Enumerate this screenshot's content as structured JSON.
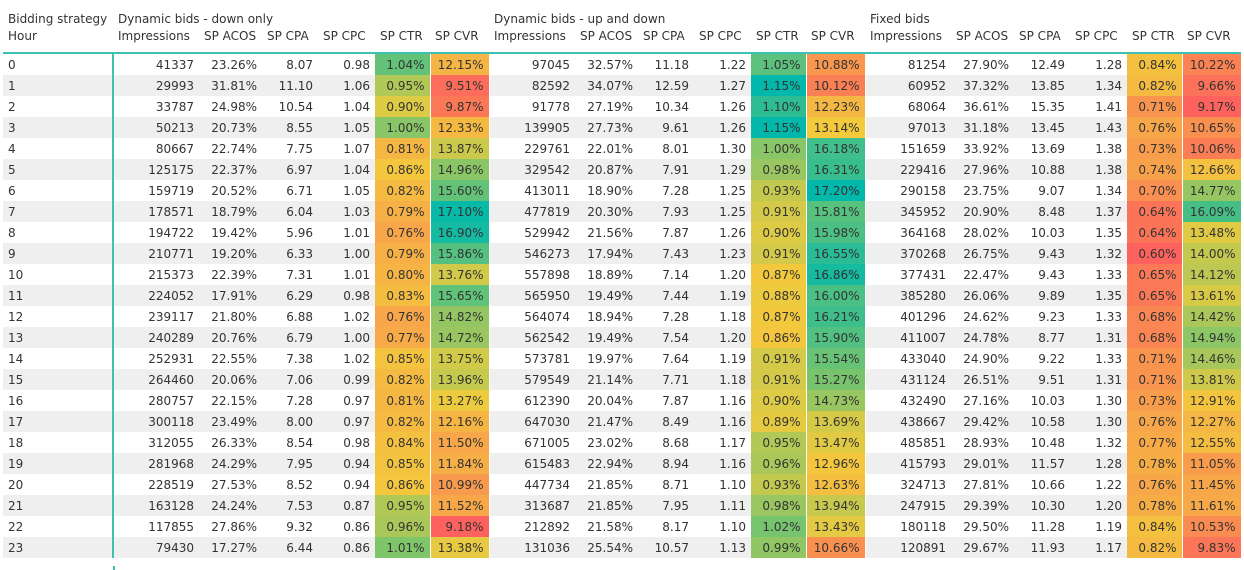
{
  "header": {
    "strategy_label": "Bidding strategy",
    "hour_label": "Hour",
    "groups": [
      "Dynamic bids - down only",
      "Dynamic bids - up and down",
      "Fixed bids"
    ],
    "columns": [
      "Impressions",
      "SP ACOS",
      "SP CPA",
      "SP CPC",
      "SP CTR",
      "SP CVR"
    ]
  },
  "colors": {
    "teal_accent": "#3cc1b3",
    "scale_low": "#fd625e",
    "scale_mid_low": "#f8a04b",
    "scale_mid": "#f2cb3c",
    "scale_mid_high": "#7dc56b",
    "scale_high": "#01b8aa"
  },
  "rows": [
    {
      "hour": "0",
      "g": [
        [
          "41337",
          "23.26%",
          "8.07",
          "0.98",
          "1.04%",
          "12.15%"
        ],
        [
          "97045",
          "32.57%",
          "11.18",
          "1.22",
          "1.05%",
          "10.88%"
        ],
        [
          "81254",
          "27.90%",
          "12.49",
          "1.28",
          "0.84%",
          "10.22%"
        ]
      ]
    },
    {
      "hour": "1",
      "g": [
        [
          "29993",
          "31.81%",
          "11.10",
          "1.06",
          "0.95%",
          "9.51%"
        ],
        [
          "82592",
          "34.07%",
          "12.59",
          "1.27",
          "1.15%",
          "10.12%"
        ],
        [
          "60952",
          "37.32%",
          "13.85",
          "1.34",
          "0.82%",
          "9.66%"
        ]
      ]
    },
    {
      "hour": "2",
      "g": [
        [
          "33787",
          "24.98%",
          "10.54",
          "1.04",
          "0.90%",
          "9.87%"
        ],
        [
          "91778",
          "27.19%",
          "10.34",
          "1.26",
          "1.10%",
          "12.23%"
        ],
        [
          "68064",
          "36.61%",
          "15.35",
          "1.41",
          "0.71%",
          "9.17%"
        ]
      ]
    },
    {
      "hour": "3",
      "g": [
        [
          "50213",
          "20.73%",
          "8.55",
          "1.05",
          "1.00%",
          "12.33%"
        ],
        [
          "139905",
          "27.73%",
          "9.61",
          "1.26",
          "1.15%",
          "13.14%"
        ],
        [
          "97013",
          "31.18%",
          "13.45",
          "1.43",
          "0.76%",
          "10.65%"
        ]
      ]
    },
    {
      "hour": "4",
      "g": [
        [
          "80667",
          "22.74%",
          "7.75",
          "1.07",
          "0.81%",
          "13.87%"
        ],
        [
          "229761",
          "22.01%",
          "8.01",
          "1.30",
          "1.00%",
          "16.18%"
        ],
        [
          "151659",
          "33.92%",
          "13.69",
          "1.38",
          "0.73%",
          "10.06%"
        ]
      ]
    },
    {
      "hour": "5",
      "g": [
        [
          "125175",
          "22.37%",
          "6.97",
          "1.04",
          "0.86%",
          "14.96%"
        ],
        [
          "329542",
          "20.87%",
          "7.91",
          "1.29",
          "0.98%",
          "16.31%"
        ],
        [
          "229416",
          "27.96%",
          "10.88",
          "1.38",
          "0.74%",
          "12.66%"
        ]
      ]
    },
    {
      "hour": "6",
      "g": [
        [
          "159719",
          "20.52%",
          "6.71",
          "1.05",
          "0.82%",
          "15.60%"
        ],
        [
          "413011",
          "18.90%",
          "7.28",
          "1.25",
          "0.93%",
          "17.20%"
        ],
        [
          "290158",
          "23.75%",
          "9.07",
          "1.34",
          "0.70%",
          "14.77%"
        ]
      ]
    },
    {
      "hour": "7",
      "g": [
        [
          "178571",
          "18.79%",
          "6.04",
          "1.03",
          "0.79%",
          "17.10%"
        ],
        [
          "477819",
          "20.30%",
          "7.93",
          "1.25",
          "0.91%",
          "15.81%"
        ],
        [
          "345952",
          "20.90%",
          "8.48",
          "1.37",
          "0.64%",
          "16.09%"
        ]
      ]
    },
    {
      "hour": "8",
      "g": [
        [
          "194722",
          "19.42%",
          "5.96",
          "1.01",
          "0.76%",
          "16.90%"
        ],
        [
          "529942",
          "21.56%",
          "7.87",
          "1.26",
          "0.90%",
          "15.98%"
        ],
        [
          "364168",
          "28.02%",
          "10.03",
          "1.35",
          "0.64%",
          "13.48%"
        ]
      ]
    },
    {
      "hour": "9",
      "g": [
        [
          "210771",
          "19.20%",
          "6.33",
          "1.00",
          "0.79%",
          "15.86%"
        ],
        [
          "546273",
          "17.94%",
          "7.43",
          "1.23",
          "0.91%",
          "16.55%"
        ],
        [
          "370268",
          "26.75%",
          "9.43",
          "1.32",
          "0.60%",
          "14.00%"
        ]
      ]
    },
    {
      "hour": "10",
      "g": [
        [
          "215373",
          "22.39%",
          "7.31",
          "1.01",
          "0.80%",
          "13.76%"
        ],
        [
          "557898",
          "18.89%",
          "7.14",
          "1.20",
          "0.87%",
          "16.86%"
        ],
        [
          "377431",
          "22.47%",
          "9.43",
          "1.33",
          "0.65%",
          "14.12%"
        ]
      ]
    },
    {
      "hour": "11",
      "g": [
        [
          "224052",
          "17.91%",
          "6.29",
          "0.98",
          "0.83%",
          "15.65%"
        ],
        [
          "565950",
          "19.49%",
          "7.44",
          "1.19",
          "0.88%",
          "16.00%"
        ],
        [
          "385280",
          "26.06%",
          "9.89",
          "1.35",
          "0.65%",
          "13.61%"
        ]
      ]
    },
    {
      "hour": "12",
      "g": [
        [
          "239117",
          "21.80%",
          "6.88",
          "1.02",
          "0.76%",
          "14.82%"
        ],
        [
          "564074",
          "18.94%",
          "7.28",
          "1.18",
          "0.87%",
          "16.21%"
        ],
        [
          "401296",
          "24.62%",
          "9.23",
          "1.33",
          "0.68%",
          "14.42%"
        ]
      ]
    },
    {
      "hour": "13",
      "g": [
        [
          "240289",
          "20.76%",
          "6.79",
          "1.00",
          "0.77%",
          "14.72%"
        ],
        [
          "562542",
          "19.49%",
          "7.54",
          "1.20",
          "0.86%",
          "15.90%"
        ],
        [
          "411007",
          "24.78%",
          "8.77",
          "1.31",
          "0.68%",
          "14.94%"
        ]
      ]
    },
    {
      "hour": "14",
      "g": [
        [
          "252931",
          "22.55%",
          "7.38",
          "1.02",
          "0.85%",
          "13.75%"
        ],
        [
          "573781",
          "19.97%",
          "7.64",
          "1.19",
          "0.91%",
          "15.54%"
        ],
        [
          "433040",
          "24.90%",
          "9.22",
          "1.33",
          "0.71%",
          "14.46%"
        ]
      ]
    },
    {
      "hour": "15",
      "g": [
        [
          "264460",
          "20.06%",
          "7.06",
          "0.99",
          "0.82%",
          "13.96%"
        ],
        [
          "579549",
          "21.14%",
          "7.71",
          "1.18",
          "0.91%",
          "15.27%"
        ],
        [
          "431124",
          "26.51%",
          "9.51",
          "1.31",
          "0.71%",
          "13.81%"
        ]
      ]
    },
    {
      "hour": "16",
      "g": [
        [
          "280757",
          "22.15%",
          "7.28",
          "0.97",
          "0.81%",
          "13.27%"
        ],
        [
          "612390",
          "20.04%",
          "7.87",
          "1.16",
          "0.90%",
          "14.73%"
        ],
        [
          "432490",
          "27.16%",
          "10.03",
          "1.30",
          "0.73%",
          "12.91%"
        ]
      ]
    },
    {
      "hour": "17",
      "g": [
        [
          "300118",
          "23.49%",
          "8.00",
          "0.97",
          "0.82%",
          "12.16%"
        ],
        [
          "647030",
          "21.47%",
          "8.49",
          "1.16",
          "0.89%",
          "13.69%"
        ],
        [
          "438667",
          "29.42%",
          "10.58",
          "1.30",
          "0.76%",
          "12.27%"
        ]
      ]
    },
    {
      "hour": "18",
      "g": [
        [
          "312055",
          "26.33%",
          "8.54",
          "0.98",
          "0.84%",
          "11.50%"
        ],
        [
          "671005",
          "23.02%",
          "8.68",
          "1.17",
          "0.95%",
          "13.47%"
        ],
        [
          "485851",
          "28.93%",
          "10.48",
          "1.32",
          "0.77%",
          "12.55%"
        ]
      ]
    },
    {
      "hour": "19",
      "g": [
        [
          "281968",
          "24.29%",
          "7.95",
          "0.94",
          "0.85%",
          "11.84%"
        ],
        [
          "615483",
          "22.94%",
          "8.94",
          "1.16",
          "0.96%",
          "12.96%"
        ],
        [
          "415793",
          "29.01%",
          "11.57",
          "1.28",
          "0.78%",
          "11.05%"
        ]
      ]
    },
    {
      "hour": "20",
      "g": [
        [
          "228519",
          "27.53%",
          "8.52",
          "0.94",
          "0.86%",
          "10.99%"
        ],
        [
          "447734",
          "21.85%",
          "8.71",
          "1.10",
          "0.93%",
          "12.63%"
        ],
        [
          "324713",
          "27.81%",
          "10.66",
          "1.22",
          "0.76%",
          "11.45%"
        ]
      ]
    },
    {
      "hour": "21",
      "g": [
        [
          "163128",
          "24.24%",
          "7.53",
          "0.87",
          "0.95%",
          "11.52%"
        ],
        [
          "313687",
          "21.85%",
          "7.95",
          "1.11",
          "0.98%",
          "13.94%"
        ],
        [
          "247915",
          "29.39%",
          "10.30",
          "1.20",
          "0.78%",
          "11.61%"
        ]
      ]
    },
    {
      "hour": "22",
      "g": [
        [
          "117855",
          "27.86%",
          "9.32",
          "0.86",
          "0.96%",
          "9.18%"
        ],
        [
          "212892",
          "21.58%",
          "8.17",
          "1.10",
          "1.02%",
          "13.43%"
        ],
        [
          "180118",
          "29.50%",
          "11.28",
          "1.19",
          "0.84%",
          "10.53%"
        ]
      ]
    },
    {
      "hour": "23",
      "g": [
        [
          "79430",
          "17.27%",
          "6.44",
          "0.86",
          "1.01%",
          "13.38%"
        ],
        [
          "131036",
          "25.54%",
          "10.57",
          "1.13",
          "0.99%",
          "10.66%"
        ],
        [
          "120891",
          "29.67%",
          "11.93",
          "1.17",
          "0.82%",
          "9.83%"
        ]
      ]
    }
  ]
}
